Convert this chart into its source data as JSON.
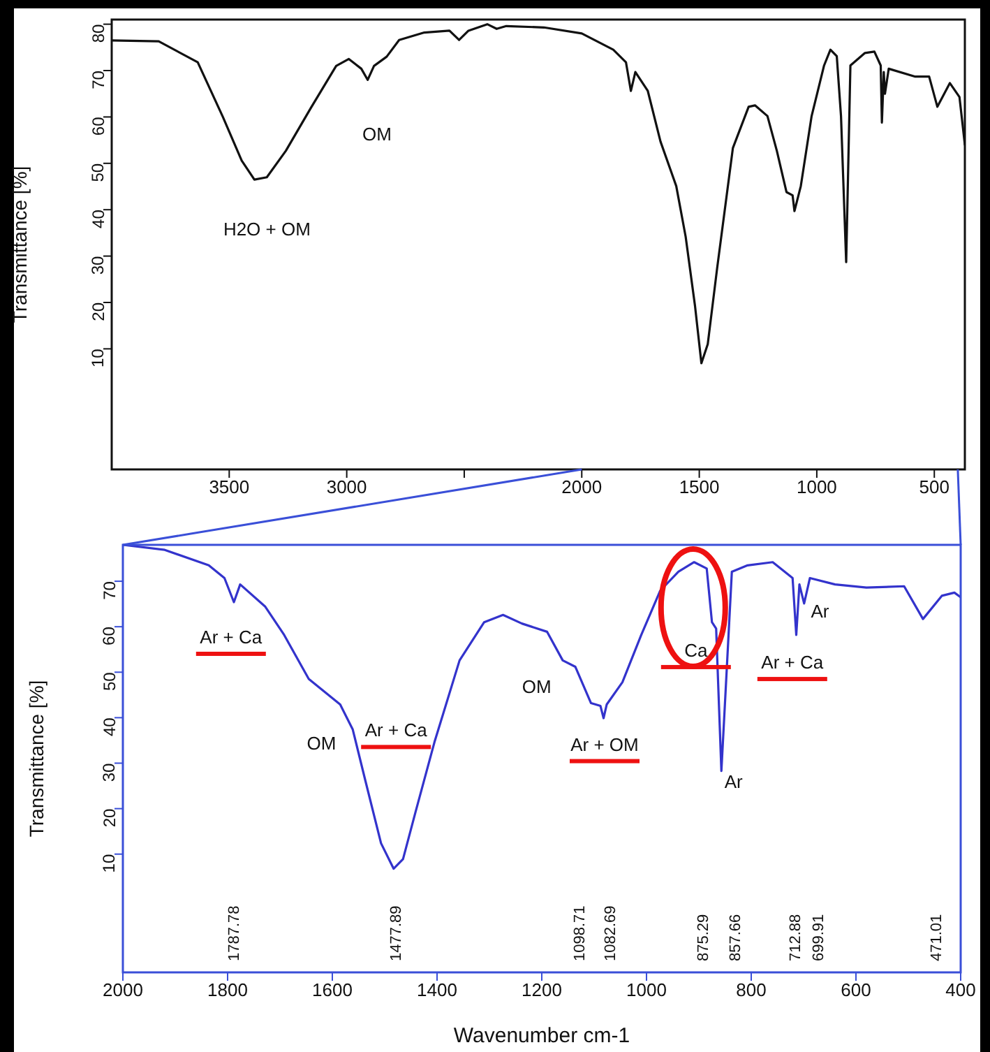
{
  "chart_data": [
    {
      "type": "line",
      "ylabel": "Transmittance [%]",
      "color": "#111111",
      "xlim": [
        4000,
        370
      ],
      "ylim": [
        -16,
        81
      ],
      "xticks": [
        3500,
        3000,
        {
          "value": 2500,
          "label": null
        },
        2000,
        1500,
        1000,
        500
      ],
      "yticks": [
        10,
        20,
        30,
        40,
        50,
        60,
        70,
        80
      ],
      "x": [
        4000,
        3800,
        3634,
        3527,
        3447,
        3393,
        3340,
        3259,
        3152,
        3045,
        2991,
        2938,
        2911,
        2884,
        2830,
        2777,
        2670,
        2563,
        2522,
        2482,
        2402,
        2362,
        2321,
        2161,
        2000,
        1866,
        1812,
        1791,
        1772,
        1719,
        1665,
        1598,
        1558,
        1518,
        1491,
        1464,
        1424,
        1357,
        1290,
        1263,
        1210,
        1170,
        1129,
        1103,
        1095,
        1068,
        1022,
        969,
        942,
        915,
        897,
        875,
        857,
        795,
        755,
        728,
        723,
        715,
        710,
        694,
        581,
        522,
        487,
        434,
        393,
        370
      ],
      "values": [
        76.5,
        76.3,
        71.8,
        60,
        50.6,
        46.5,
        47,
        52.7,
        62,
        71,
        72.5,
        70.4,
        68,
        71,
        73,
        76.6,
        78.2,
        78.6,
        76.6,
        78.6,
        80,
        79,
        79.6,
        79.3,
        78,
        74.5,
        71.8,
        65.6,
        69.7,
        65.6,
        54.7,
        45.1,
        34.2,
        19.2,
        6.9,
        11,
        27.4,
        53.3,
        62.2,
        62.5,
        60.2,
        52.7,
        43.8,
        43.1,
        39.7,
        45.1,
        60.2,
        71.1,
        74.5,
        73.1,
        60.2,
        28.7,
        71.1,
        73.8,
        74.1,
        71.1,
        58.8,
        69.7,
        65,
        70.4,
        68.7,
        68.7,
        62.2,
        67.3,
        64.3,
        54
      ],
      "annotations": [
        "OM",
        "H2O + OM"
      ]
    },
    {
      "type": "line",
      "ylabel": "Transmittance [%]",
      "xlabel": "Wavenumber cm-1",
      "color": "#3333cc",
      "xlim": [
        2000,
        400
      ],
      "ylim": [
        -16,
        78
      ],
      "xticks": [
        2000,
        1800,
        1600,
        1400,
        1200,
        1000,
        800,
        600,
        400
      ],
      "yticks": [
        10,
        20,
        30,
        40,
        50,
        60,
        70
      ],
      "x": [
        2000,
        1920,
        1836,
        1806,
        1788,
        1776,
        1728,
        1692,
        1645,
        1585,
        1561,
        1537,
        1507,
        1483,
        1465,
        1441,
        1405,
        1357,
        1310,
        1274,
        1238,
        1190,
        1160,
        1136,
        1106,
        1088,
        1082,
        1076,
        1046,
        1010,
        974,
        939,
        909,
        885,
        875,
        867,
        857,
        849,
        837,
        807,
        759,
        721,
        714,
        708,
        699,
        688,
        640,
        580,
        508,
        472,
        436,
        412,
        400
      ],
      "values": [
        78,
        76.9,
        73.5,
        70.7,
        65.4,
        69.3,
        64.4,
        58.2,
        48.5,
        42.9,
        37.4,
        26.2,
        12.4,
        6.8,
        8.9,
        19.3,
        34.6,
        52.6,
        61,
        62.6,
        60.7,
        58.9,
        52.6,
        51.2,
        43.2,
        42.6,
        39.9,
        42.9,
        47.8,
        58.2,
        67.9,
        72.1,
        74.2,
        72.8,
        61,
        59.6,
        28.3,
        45.7,
        72.1,
        73.5,
        74.2,
        70.7,
        58.2,
        69.3,
        65.1,
        70.7,
        69.3,
        68.6,
        68.9,
        61.7,
        66.8,
        67.5,
        66.5
      ],
      "annotations": [
        "Ar + Ca",
        "OM",
        "Ar + Ca",
        "OM",
        "Ar + OM",
        "Ca",
        "Ar",
        "Ar + Ca",
        "Ar",
        "1787.78",
        "1477.89",
        "1098.71",
        "1082.69",
        "875.29",
        "857.66",
        "712.88",
        "699.91",
        "471.01"
      ]
    }
  ]
}
